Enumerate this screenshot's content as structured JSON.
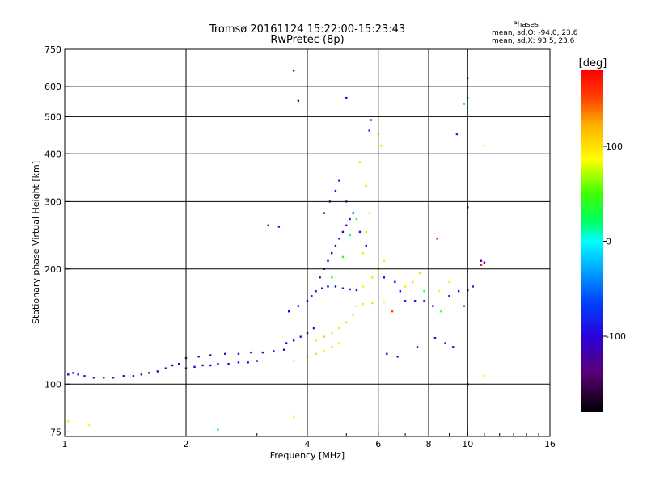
{
  "chart_data": {
    "type": "scatter",
    "title": "Tromsø 20161124 15:22:00-15:23:43",
    "subtitle": "RwPretec (8p)",
    "xlabel": "Frequency [MHz]",
    "ylabel": "Stationary phase Virtual Height [km]",
    "x_scale": "log",
    "y_scale": "log",
    "xlim": [
      1,
      16
    ],
    "ylim": [
      73,
      750
    ],
    "x_ticks": [
      1,
      2,
      4,
      6,
      8,
      10,
      16
    ],
    "y_ticks": [
      75,
      100,
      200,
      300,
      400,
      500,
      600,
      750
    ],
    "grid": true,
    "legend": {
      "title": "Phases",
      "lines": [
        "mean, sd,O: -94.0, 23.6",
        "mean, sd,X:  93.5, 23.6"
      ]
    },
    "colorbar": {
      "label": "[deg]",
      "range": [
        -180,
        180
      ],
      "ticks": [
        -100,
        0,
        100
      ],
      "colormap": "rainbow"
    },
    "series": [
      {
        "points": [
          {
            "x": 1.02,
            "y": 106,
            "phase": -95
          },
          {
            "x": 1.05,
            "y": 107,
            "phase": -100
          },
          {
            "x": 1.08,
            "y": 106,
            "phase": -92
          },
          {
            "x": 1.12,
            "y": 105,
            "phase": -97
          },
          {
            "x": 1.18,
            "y": 104,
            "phase": -90
          },
          {
            "x": 1.25,
            "y": 104,
            "phase": -105
          },
          {
            "x": 1.32,
            "y": 104,
            "phase": -95
          },
          {
            "x": 1.4,
            "y": 105,
            "phase": -110
          },
          {
            "x": 1.48,
            "y": 105,
            "phase": -98
          },
          {
            "x": 1.55,
            "y": 106,
            "phase": -120
          },
          {
            "x": 1.62,
            "y": 107,
            "phase": -100
          },
          {
            "x": 1.7,
            "y": 108,
            "phase": -115
          },
          {
            "x": 1.78,
            "y": 110,
            "phase": -92
          },
          {
            "x": 1.85,
            "y": 112,
            "phase": -125
          },
          {
            "x": 1.92,
            "y": 113,
            "phase": -100
          },
          {
            "x": 2.0,
            "y": 110,
            "phase": -95
          },
          {
            "x": 2.1,
            "y": 111,
            "phase": -98
          },
          {
            "x": 2.2,
            "y": 112,
            "phase": -92
          },
          {
            "x": 2.3,
            "y": 112,
            "phase": -100
          },
          {
            "x": 2.4,
            "y": 113,
            "phase": -94
          },
          {
            "x": 2.55,
            "y": 113,
            "phase": -96
          },
          {
            "x": 2.7,
            "y": 114,
            "phase": -90
          },
          {
            "x": 2.85,
            "y": 114,
            "phase": -99
          },
          {
            "x": 3.0,
            "y": 115,
            "phase": -93
          },
          {
            "x": 2.0,
            "y": 117,
            "phase": -120
          },
          {
            "x": 2.15,
            "y": 118,
            "phase": -110
          },
          {
            "x": 2.3,
            "y": 119,
            "phase": -125
          },
          {
            "x": 2.5,
            "y": 120,
            "phase": -105
          },
          {
            "x": 2.7,
            "y": 120,
            "phase": -115
          },
          {
            "x": 2.9,
            "y": 121,
            "phase": -100
          },
          {
            "x": 3.1,
            "y": 121,
            "phase": -108
          },
          {
            "x": 3.3,
            "y": 122,
            "phase": -95
          },
          {
            "x": 3.5,
            "y": 123,
            "phase": -100
          },
          {
            "x": 3.55,
            "y": 128,
            "phase": -95
          },
          {
            "x": 3.7,
            "y": 130,
            "phase": -98
          },
          {
            "x": 3.85,
            "y": 133,
            "phase": -92
          },
          {
            "x": 4.0,
            "y": 136,
            "phase": -100
          },
          {
            "x": 4.15,
            "y": 140,
            "phase": -90
          },
          {
            "x": 3.6,
            "y": 155,
            "phase": -100
          },
          {
            "x": 3.8,
            "y": 160,
            "phase": -95
          },
          {
            "x": 4.0,
            "y": 165,
            "phase": -100
          },
          {
            "x": 4.1,
            "y": 170,
            "phase": -92
          },
          {
            "x": 4.2,
            "y": 175,
            "phase": -100
          },
          {
            "x": 4.35,
            "y": 178,
            "phase": -95
          },
          {
            "x": 4.5,
            "y": 180,
            "phase": -100
          },
          {
            "x": 4.7,
            "y": 180,
            "phase": -98
          },
          {
            "x": 4.9,
            "y": 178,
            "phase": -92
          },
          {
            "x": 5.1,
            "y": 177,
            "phase": -100
          },
          {
            "x": 5.3,
            "y": 176,
            "phase": -95
          },
          {
            "x": 4.3,
            "y": 190,
            "phase": -98
          },
          {
            "x": 4.4,
            "y": 200,
            "phase": -100
          },
          {
            "x": 4.5,
            "y": 210,
            "phase": -95
          },
          {
            "x": 4.6,
            "y": 220,
            "phase": -100
          },
          {
            "x": 4.7,
            "y": 230,
            "phase": -90
          },
          {
            "x": 4.8,
            "y": 240,
            "phase": -98
          },
          {
            "x": 4.9,
            "y": 250,
            "phase": -95
          },
          {
            "x": 5.0,
            "y": 260,
            "phase": -100
          },
          {
            "x": 5.1,
            "y": 270,
            "phase": -92
          },
          {
            "x": 4.4,
            "y": 280,
            "phase": -98
          },
          {
            "x": 4.55,
            "y": 300,
            "phase": -95
          },
          {
            "x": 4.7,
            "y": 320,
            "phase": -100
          },
          {
            "x": 4.8,
            "y": 340,
            "phase": -80
          },
          {
            "x": 5.0,
            "y": 300,
            "phase": -60
          },
          {
            "x": 5.2,
            "y": 280,
            "phase": -75
          },
          {
            "x": 5.4,
            "y": 250,
            "phase": -90
          },
          {
            "x": 5.6,
            "y": 230,
            "phase": -100
          },
          {
            "x": 5.7,
            "y": 460,
            "phase": -70
          },
          {
            "x": 5.75,
            "y": 490,
            "phase": -80
          },
          {
            "x": 5.0,
            "y": 560,
            "phase": -100
          },
          {
            "x": 3.7,
            "y": 660,
            "phase": -110
          },
          {
            "x": 3.8,
            "y": 550,
            "phase": -130
          },
          {
            "x": 3.2,
            "y": 260,
            "phase": -125
          },
          {
            "x": 3.4,
            "y": 258,
            "phase": -110
          },
          {
            "x": 6.2,
            "y": 190,
            "phase": -100
          },
          {
            "x": 6.6,
            "y": 185,
            "phase": -95
          },
          {
            "x": 6.8,
            "y": 175,
            "phase": -90
          },
          {
            "x": 7.0,
            "y": 165,
            "phase": -100
          },
          {
            "x": 7.4,
            "y": 165,
            "phase": -95
          },
          {
            "x": 7.8,
            "y": 165,
            "phase": -98
          },
          {
            "x": 8.2,
            "y": 160,
            "phase": -100
          },
          {
            "x": 9.0,
            "y": 170,
            "phase": -95
          },
          {
            "x": 9.5,
            "y": 175,
            "phase": -92
          },
          {
            "x": 10.0,
            "y": 176,
            "phase": -100
          },
          {
            "x": 10.3,
            "y": 180,
            "phase": -95
          },
          {
            "x": 10.0,
            "y": 290,
            "phase": -100
          },
          {
            "x": 11.0,
            "y": 208,
            "phase": -110
          },
          {
            "x": 10.8,
            "y": 210,
            "phase": -120
          },
          {
            "x": 6.3,
            "y": 120,
            "phase": -95
          },
          {
            "x": 6.7,
            "y": 118,
            "phase": -100
          },
          {
            "x": 7.5,
            "y": 125,
            "phase": -98
          },
          {
            "x": 8.3,
            "y": 132,
            "phase": -100
          },
          {
            "x": 8.8,
            "y": 128,
            "phase": -92
          },
          {
            "x": 9.2,
            "y": 125,
            "phase": -95
          },
          {
            "x": 10.0,
            "y": 100,
            "phase": -90
          },
          {
            "x": 9.4,
            "y": 450,
            "phase": -70
          },
          {
            "x": 3.7,
            "y": 115,
            "phase": 95
          },
          {
            "x": 4.0,
            "y": 118,
            "phase": 100
          },
          {
            "x": 4.2,
            "y": 120,
            "phase": 110
          },
          {
            "x": 4.4,
            "y": 122,
            "phase": 90
          },
          {
            "x": 4.6,
            "y": 125,
            "phase": 105
          },
          {
            "x": 4.8,
            "y": 128,
            "phase": 95
          },
          {
            "x": 4.2,
            "y": 130,
            "phase": 100
          },
          {
            "x": 4.4,
            "y": 133,
            "phase": 115
          },
          {
            "x": 4.6,
            "y": 136,
            "phase": 95
          },
          {
            "x": 4.8,
            "y": 140,
            "phase": 100
          },
          {
            "x": 5.0,
            "y": 145,
            "phase": 105
          },
          {
            "x": 5.2,
            "y": 152,
            "phase": 110
          },
          {
            "x": 5.3,
            "y": 160,
            "phase": 100
          },
          {
            "x": 5.5,
            "y": 162,
            "phase": 95
          },
          {
            "x": 5.8,
            "y": 163,
            "phase": 100
          },
          {
            "x": 6.2,
            "y": 164,
            "phase": 90
          },
          {
            "x": 5.5,
            "y": 180,
            "phase": 95
          },
          {
            "x": 5.8,
            "y": 190,
            "phase": 100
          },
          {
            "x": 6.0,
            "y": 200,
            "phase": 110
          },
          {
            "x": 6.2,
            "y": 210,
            "phase": 95
          },
          {
            "x": 5.5,
            "y": 220,
            "phase": 100
          },
          {
            "x": 5.6,
            "y": 250,
            "phase": 105
          },
          {
            "x": 5.7,
            "y": 280,
            "phase": 95
          },
          {
            "x": 5.6,
            "y": 330,
            "phase": 100
          },
          {
            "x": 5.4,
            "y": 380,
            "phase": 110
          },
          {
            "x": 6.0,
            "y": 450,
            "phase": 95
          },
          {
            "x": 6.1,
            "y": 420,
            "phase": 100
          },
          {
            "x": 7.0,
            "y": 180,
            "phase": 95
          },
          {
            "x": 7.3,
            "y": 185,
            "phase": 110
          },
          {
            "x": 7.6,
            "y": 195,
            "phase": 100
          },
          {
            "x": 8.5,
            "y": 175,
            "phase": 90
          },
          {
            "x": 9.0,
            "y": 185,
            "phase": 95
          },
          {
            "x": 11.0,
            "y": 420,
            "phase": 100
          },
          {
            "x": 11.0,
            "y": 105,
            "phase": 95
          },
          {
            "x": 3.7,
            "y": 82,
            "phase": 90
          },
          {
            "x": 1.15,
            "y": 78,
            "phase": 85
          },
          {
            "x": 1.02,
            "y": 80,
            "phase": 95
          },
          {
            "x": 4.6,
            "y": 190,
            "phase": 30
          },
          {
            "x": 4.9,
            "y": 215,
            "phase": 40
          },
          {
            "x": 5.1,
            "y": 245,
            "phase": 20
          },
          {
            "x": 5.3,
            "y": 270,
            "phase": 45
          },
          {
            "x": 7.8,
            "y": 175,
            "phase": 35
          },
          {
            "x": 9.8,
            "y": 540,
            "phase": 20
          },
          {
            "x": 10.0,
            "y": 560,
            "phase": 10
          },
          {
            "x": 2.4,
            "y": 76,
            "phase": 20
          },
          {
            "x": 8.6,
            "y": 155,
            "phase": 40
          },
          {
            "x": 10.0,
            "y": 630,
            "phase": 170
          },
          {
            "x": 9.8,
            "y": 160,
            "phase": 160
          },
          {
            "x": 8.4,
            "y": 240,
            "phase": 165
          },
          {
            "x": 10.8,
            "y": 205,
            "phase": 175
          },
          {
            "x": 6.5,
            "y": 155,
            "phase": 150
          }
        ]
      }
    ]
  }
}
